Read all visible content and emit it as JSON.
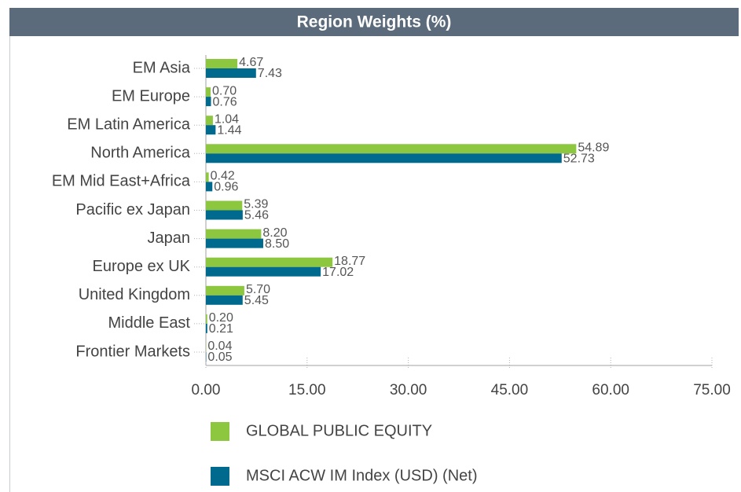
{
  "chart_data": {
    "type": "bar",
    "orientation": "horizontal",
    "title": "Region Weights (%)",
    "categories": [
      "EM Asia",
      "EM Europe",
      "EM Latin America",
      "North America",
      "EM Mid East+Africa",
      "Pacific ex Japan",
      "Japan",
      "Europe ex UK",
      "United Kingdom",
      "Middle East",
      "Frontier Markets"
    ],
    "series": [
      {
        "name": "GLOBAL PUBLIC EQUITY",
        "color": "#8dc63f",
        "values": [
          4.67,
          0.7,
          1.04,
          54.89,
          0.42,
          5.39,
          8.2,
          18.77,
          5.7,
          0.2,
          0.04
        ],
        "value_labels": [
          "4.67",
          "0.70",
          "1.04",
          "54.89",
          "0.42",
          "5.39",
          "8.20",
          "18.77",
          "5.70",
          "0.20",
          "0.04"
        ]
      },
      {
        "name": "MSCI ACW IM Index (USD) (Net)",
        "color": "#006a8e",
        "values": [
          7.43,
          0.76,
          1.44,
          52.73,
          0.96,
          5.46,
          8.5,
          17.02,
          5.45,
          0.21,
          0.05
        ],
        "value_labels": [
          "7.43",
          "0.76",
          "1.44",
          "52.73",
          "0.96",
          "5.46",
          "8.50",
          "17.02",
          "5.45",
          "0.21",
          "0.05"
        ]
      }
    ],
    "xlim": [
      0,
      75
    ],
    "xticks": [
      {
        "value": 0,
        "label": "0.00"
      },
      {
        "value": 15,
        "label": "15.00"
      },
      {
        "value": 30,
        "label": "30.00"
      },
      {
        "value": 45,
        "label": "45.00"
      },
      {
        "value": 60,
        "label": "60.00"
      },
      {
        "value": 75,
        "label": "75.00"
      }
    ]
  }
}
